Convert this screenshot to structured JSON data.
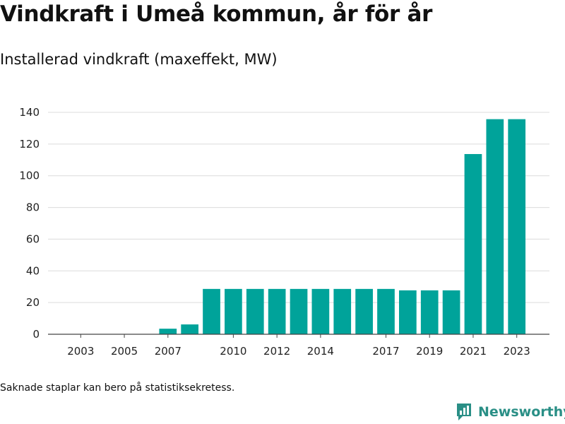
{
  "title": "Vindkraft i Umeå kommun, år för år",
  "subtitle": "Installerad vindkraft (maxeffekt, MW)",
  "note": "Saknade staplar kan bero på statistiksekretess.",
  "brand": {
    "name": "Newsworthy",
    "icon": "newsworthy-logo-icon",
    "color": "#2a8f86"
  },
  "chart_data": {
    "type": "bar",
    "title": "Vindkraft i Umeå kommun, år för år",
    "ylabel": "Installerad vindkraft (maxeffekt, MW)",
    "xlabel": "",
    "bar_color": "#00a39a",
    "grid": true,
    "ylim": [
      0,
      145
    ],
    "yticks": [
      0,
      20,
      40,
      60,
      80,
      100,
      120,
      140
    ],
    "xlim": [
      2001.5,
      2024.5
    ],
    "xticks": [
      2003,
      2005,
      2007,
      2010,
      2012,
      2014,
      2017,
      2019,
      2021,
      2023
    ],
    "x": [
      2007,
      2008,
      2009,
      2010,
      2011,
      2012,
      2013,
      2014,
      2015,
      2016,
      2017,
      2018,
      2019,
      2020,
      2021,
      2022,
      2023
    ],
    "values": [
      3.5,
      6.2,
      28.6,
      28.6,
      28.6,
      28.6,
      28.6,
      28.6,
      28.6,
      28.6,
      28.6,
      27.7,
      27.7,
      27.7,
      113.7,
      135.7,
      135.7
    ]
  }
}
